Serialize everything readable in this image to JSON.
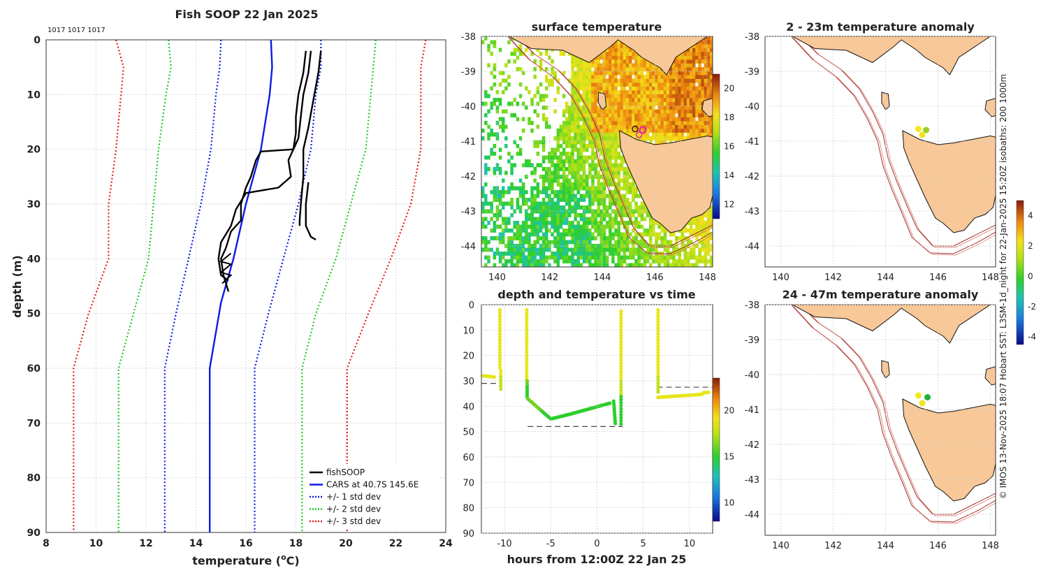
{
  "main_title": "Fish SOOP 22 Jan 2025",
  "cast_ids": "1017 1017 1017",
  "colors": {
    "fishsoop": "#000000",
    "cars": "#0b1ce6",
    "std1": "#0b1ce6",
    "std2": "#19cc19",
    "std3": "#e61a1a",
    "land": "#f9c898",
    "isobath": "#a0302a"
  },
  "chart_data": [
    {
      "id": "profile",
      "type": "line",
      "title": "Fish SOOP 22 Jan 2025",
      "xlabel": "temperature (",
      "xlabel_sup": "o",
      "xlabel_end": "C)",
      "ylabel": "depth (m)",
      "xlim": [
        8,
        24
      ],
      "ylim": [
        0,
        90
      ],
      "xticks": [
        8,
        10,
        12,
        14,
        16,
        18,
        20,
        22,
        24
      ],
      "yticks": [
        0,
        10,
        20,
        30,
        40,
        50,
        60,
        70,
        80,
        90
      ],
      "legend": [
        {
          "label": "fishSOOP",
          "style": "solid",
          "color": "#000000"
        },
        {
          "label": "CARS at 40.7S 145.6E",
          "style": "solid",
          "color": "#0b1ce6"
        },
        {
          "label": "+/- 1 std dev",
          "style": "dotted",
          "color": "#0b1ce6"
        },
        {
          "label": "+/- 2 std dev",
          "style": "dotted",
          "color": "#19cc19"
        },
        {
          "label": "+/- 3 std dev",
          "style": "dotted",
          "color": "#e61a1a"
        }
      ],
      "series": [
        {
          "name": "CARS",
          "style": "solid",
          "color": "#0b1ce6",
          "points": [
            [
              17.0,
              0
            ],
            [
              17.05,
              5
            ],
            [
              16.95,
              10
            ],
            [
              16.6,
              20
            ],
            [
              16.0,
              30
            ],
            [
              15.5,
              40
            ],
            [
              15.0,
              48
            ],
            [
              14.55,
              60
            ],
            [
              14.55,
              90
            ]
          ]
        },
        {
          "name": "+1 std",
          "style": "dotted",
          "color": "#0b1ce6",
          "points": [
            [
              19.0,
              0
            ],
            [
              19.0,
              5
            ],
            [
              18.8,
              10
            ],
            [
              18.6,
              20
            ],
            [
              18.1,
              30
            ],
            [
              17.5,
              40
            ],
            [
              16.9,
              50
            ],
            [
              16.35,
              60
            ],
            [
              16.35,
              90
            ]
          ]
        },
        {
          "name": "-1 std",
          "style": "dotted",
          "color": "#0b1ce6",
          "points": [
            [
              15.0,
              0
            ],
            [
              14.95,
              5
            ],
            [
              14.8,
              10
            ],
            [
              14.6,
              20
            ],
            [
              14.2,
              30
            ],
            [
              13.7,
              40
            ],
            [
              13.2,
              50
            ],
            [
              12.75,
              60
            ],
            [
              12.75,
              90
            ]
          ]
        },
        {
          "name": "+2 std",
          "style": "dotted",
          "color": "#19cc19",
          "points": [
            [
              21.2,
              0
            ],
            [
              21.1,
              5
            ],
            [
              21.0,
              10
            ],
            [
              20.8,
              20
            ],
            [
              20.2,
              30
            ],
            [
              19.6,
              40
            ],
            [
              18.8,
              50
            ],
            [
              18.25,
              60
            ],
            [
              18.25,
              90
            ]
          ]
        },
        {
          "name": "-2 std",
          "style": "dotted",
          "color": "#19cc19",
          "points": [
            [
              12.9,
              0
            ],
            [
              13.0,
              5
            ],
            [
              12.8,
              10
            ],
            [
              12.5,
              20
            ],
            [
              12.3,
              30
            ],
            [
              12.1,
              40
            ],
            [
              11.5,
              50
            ],
            [
              10.9,
              60
            ],
            [
              10.9,
              90
            ]
          ]
        },
        {
          "name": "+3 std",
          "style": "dotted",
          "color": "#e61a1a",
          "points": [
            [
              23.2,
              0
            ],
            [
              23.0,
              5
            ],
            [
              23.0,
              10
            ],
            [
              23.0,
              20
            ],
            [
              22.6,
              30
            ],
            [
              21.8,
              40
            ],
            [
              20.9,
              50
            ],
            [
              20.05,
              60
            ],
            [
              20.05,
              90
            ]
          ]
        },
        {
          "name": "-3 std",
          "style": "dotted",
          "color": "#e61a1a",
          "points": [
            [
              10.8,
              0
            ],
            [
              11.1,
              5
            ],
            [
              11.0,
              10
            ],
            [
              10.8,
              20
            ],
            [
              10.5,
              30
            ],
            [
              10.5,
              40
            ],
            [
              9.7,
              50
            ],
            [
              9.1,
              60
            ],
            [
              9.1,
              90
            ]
          ]
        },
        {
          "name": "fishSOOP cast 1",
          "style": "solid",
          "color": "#000000",
          "points": [
            [
              19.0,
              2
            ],
            [
              18.9,
              6
            ],
            [
              18.7,
              11
            ],
            [
              18.5,
              16
            ],
            [
              18.3,
              20
            ],
            [
              18.3,
              25
            ],
            [
              18.2,
              30
            ],
            [
              18.15,
              33
            ],
            [
              18.15,
              34
            ]
          ]
        },
        {
          "name": "fishSOOP cast 2",
          "style": "solid",
          "color": "#000000",
          "points": [
            [
              18.6,
              2
            ],
            [
              18.5,
              6
            ],
            [
              18.3,
              10
            ],
            [
              18.2,
              14
            ],
            [
              18.1,
              18
            ],
            [
              17.9,
              20
            ],
            [
              16.6,
              20.4
            ],
            [
              16.4,
              22
            ],
            [
              16.2,
              25
            ],
            [
              16.0,
              27
            ],
            [
              15.8,
              30
            ],
            [
              15.8,
              33
            ],
            [
              15.4,
              35
            ],
            [
              15.2,
              38
            ],
            [
              15.0,
              40
            ],
            [
              15.1,
              43
            ],
            [
              15.3,
              46
            ]
          ]
        },
        {
          "name": "fishSOOP cast 3",
          "style": "solid",
          "color": "#000000",
          "points": [
            [
              18.4,
              2
            ],
            [
              18.3,
              6
            ],
            [
              18.1,
              10
            ],
            [
              18.0,
              14
            ],
            [
              18.0,
              17
            ],
            [
              17.9,
              20
            ],
            [
              17.7,
              22
            ],
            [
              17.8,
              25
            ],
            [
              17.3,
              27
            ],
            [
              16.0,
              28
            ],
            [
              15.6,
              31
            ],
            [
              15.4,
              34
            ],
            [
              15.0,
              37
            ],
            [
              14.9,
              40
            ],
            [
              15.0,
              43
            ],
            [
              15.3,
              44
            ]
          ]
        },
        {
          "name": "fishSOOP cast 3b",
          "style": "solid",
          "color": "#000000",
          "points": [
            [
              18.5,
              26
            ],
            [
              18.4,
              30
            ],
            [
              18.4,
              34
            ],
            [
              18.6,
              36
            ],
            [
              18.8,
              36.5
            ]
          ]
        }
      ]
    },
    {
      "id": "sst",
      "type": "heatmap",
      "title": "surface temperature",
      "xticks": [
        140,
        142,
        144,
        146,
        148
      ],
      "yticks": [
        -38,
        -39,
        -40,
        -41,
        -42,
        -43,
        -44
      ],
      "xlim": [
        139.4,
        148.2
      ],
      "ylim": [
        -44.6,
        -38
      ],
      "colorbar": {
        "ticks": [
          12,
          14,
          16,
          18,
          20
        ],
        "range": [
          11,
          21
        ]
      }
    },
    {
      "id": "time",
      "type": "scatter",
      "title": "depth and temperature vs time",
      "xlabel": "hours from 12:00Z 22 Jan 25",
      "xlim": [
        -12.5,
        12.5
      ],
      "ylim": [
        0,
        90
      ],
      "xticks": [
        -10,
        -5,
        0,
        5,
        10
      ],
      "yticks": [
        0,
        10,
        20,
        30,
        40,
        50,
        60,
        70,
        80,
        90
      ],
      "colorbar": {
        "ticks": [
          10,
          15,
          20
        ],
        "range": [
          8,
          23.5
        ]
      },
      "reference_lines": [
        {
          "x": [
            -12.5,
            -10.4
          ],
          "depth": 31
        },
        {
          "x": [
            -7.5,
            2.8
          ],
          "depth": 48
        },
        {
          "x": [
            6.5,
            12.5
          ],
          "depth": 32.5
        }
      ]
    },
    {
      "id": "anom1",
      "type": "scatter",
      "title": "2 - 23m temperature anomaly",
      "xticks": [
        140,
        142,
        144,
        146,
        148
      ],
      "yticks": [
        -38,
        -39,
        -40,
        -41,
        -42,
        -43,
        -44
      ],
      "xlim": [
        139.4,
        148.2
      ],
      "ylim": [
        -44.6,
        -38
      ],
      "points": [
        {
          "lon": 145.25,
          "lat": -40.65,
          "value": 2.2,
          "color": "#f0ea1a"
        },
        {
          "lon": 145.55,
          "lat": -40.68,
          "value": 1.1,
          "color": "#9ad11d"
        },
        {
          "lon": 145.4,
          "lat": -40.82,
          "value": 2.6,
          "color": "#f2e41c"
        }
      ]
    },
    {
      "id": "anom2",
      "type": "scatter",
      "title": "24 - 47m temperature anomaly",
      "xticks": [
        140,
        142,
        144,
        146,
        148
      ],
      "yticks": [
        -38,
        -39,
        -40,
        -41,
        -42,
        -43,
        -44
      ],
      "xlim": [
        139.4,
        148.2
      ],
      "ylim": [
        -44.6,
        -38
      ],
      "points": [
        {
          "lon": 145.25,
          "lat": -40.6,
          "value": 2.1,
          "color": "#f0ea1a"
        },
        {
          "lon": 145.6,
          "lat": -40.65,
          "value": 0.2,
          "color": "#19b33c"
        },
        {
          "lon": 145.4,
          "lat": -40.82,
          "value": 2.6,
          "color": "#f2e41c"
        }
      ]
    }
  ],
  "anomaly_colorbar": {
    "ticks": [
      4,
      2,
      0,
      -2,
      -4
    ],
    "range": [
      -4.5,
      5
    ]
  },
  "credit": "© IMOS 13-Nov-2025 18:07 Hobart SST: L3SM-1d_night for 22-Jan-2025 15:20Z isobaths: 200  1000m"
}
